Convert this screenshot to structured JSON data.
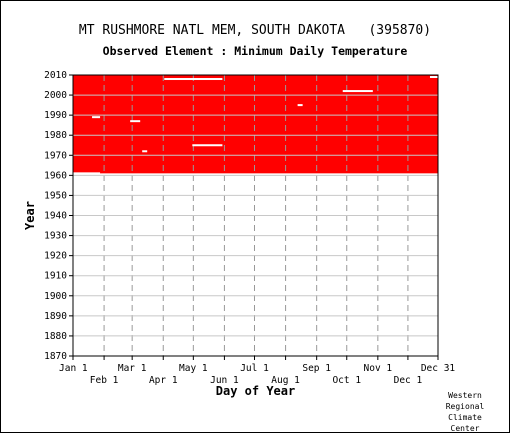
{
  "chart_data": {
    "type": "bar",
    "title": "MT RUSHMORE NATL MEM, SOUTH DAKOTA   (395870)",
    "subtitle": "Observed Element : Minimum Daily Temperature",
    "xlabel": "Day of Year",
    "ylabel": "Year",
    "x_ticks_top_row": [
      "Jan 1",
      "Mar 1",
      "May 1",
      "Jul 1",
      "Sep 1",
      "Nov 1",
      "Dec 31"
    ],
    "x_ticks_bottom_row": [
      "Feb 1",
      "Apr 1",
      "Jun 1",
      "Aug 1",
      "Oct 1",
      "Dec 1"
    ],
    "y_ticks": [
      2010,
      2000,
      1990,
      1980,
      1970,
      1960,
      1950,
      1940,
      1930,
      1920,
      1910,
      1900,
      1890,
      1880,
      1870
    ],
    "ylim": [
      1870,
      2010
    ],
    "xlim": [
      1,
      365
    ],
    "grid": true,
    "data_color": "#ff0000",
    "data_coverage": {
      "start_year": 1961,
      "end_year": 2010,
      "day_start": 1,
      "day_end": 365,
      "description": "Observed data present on nearly all days"
    },
    "gaps": [
      {
        "year": 1961,
        "day_start": 1,
        "day_end": 28
      },
      {
        "year": 2008,
        "day_start": 92,
        "day_end": 150
      },
      {
        "year": 2002,
        "day_start": 270,
        "day_end": 300
      },
      {
        "year": 1989,
        "day_start": 20,
        "day_end": 28
      },
      {
        "year": 1987,
        "day_start": 58,
        "day_end": 68
      },
      {
        "year": 1975,
        "day_start": 120,
        "day_end": 150
      },
      {
        "year": 1995,
        "day_start": 225,
        "day_end": 230
      },
      {
        "year": 1972,
        "day_start": 70,
        "day_end": 75
      },
      {
        "year": 2009,
        "day_start": 357,
        "day_end": 365
      }
    ]
  },
  "credit": [
    "Western",
    "Regional",
    "Climate",
    "Center"
  ]
}
